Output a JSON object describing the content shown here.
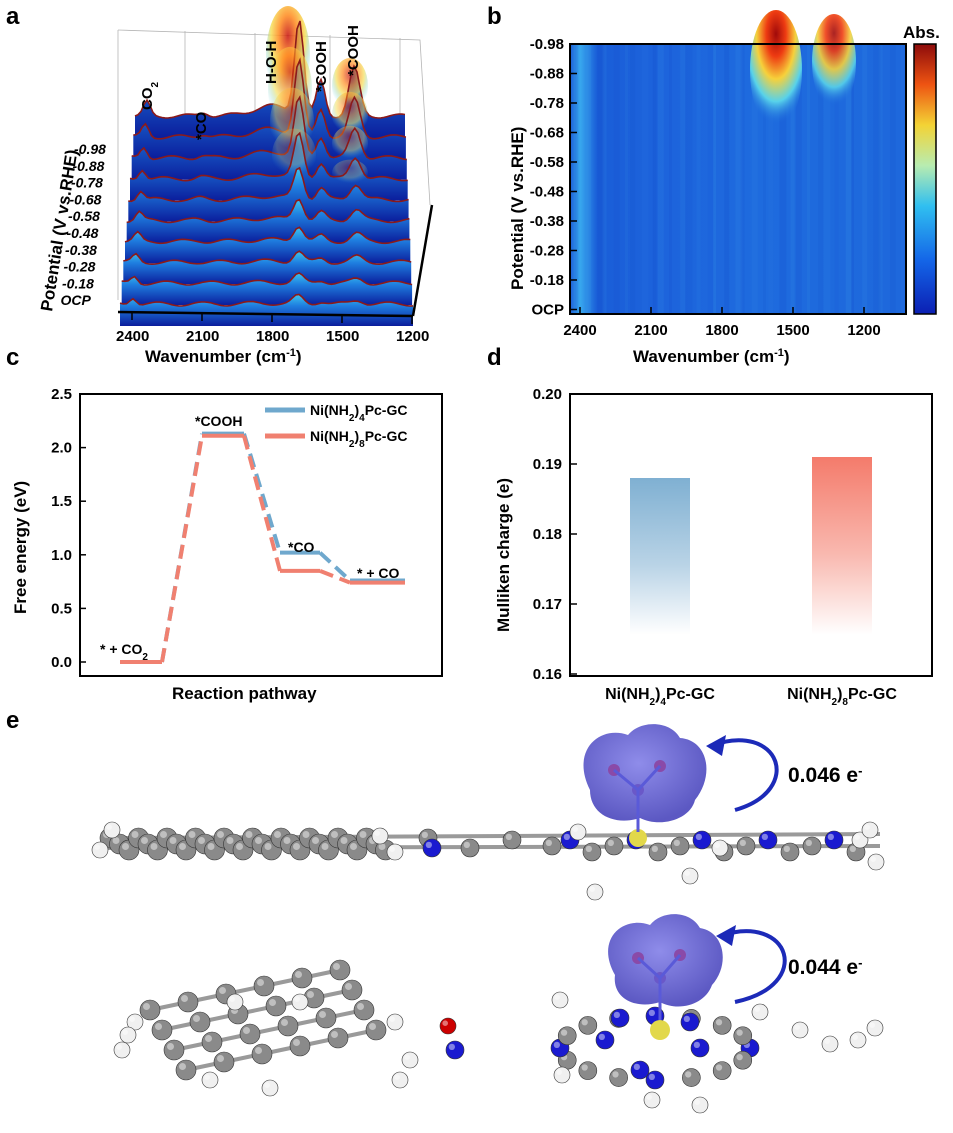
{
  "panels": {
    "a": {
      "letter": "a",
      "xlabel": "Wavenumber (cm",
      "xlabel_sup": "-1",
      "xlabel_end": ")",
      "ylabel": "Potential (V vs.RHE)",
      "x_ticks": [
        "2400",
        "2100",
        "1800",
        "1500",
        "1200"
      ],
      "potential_labels": [
        "-0.98",
        "-0.88",
        "-0.78",
        "-0.68",
        "-0.58",
        "-0.48",
        "-0.38",
        "-0.28",
        "-0.18",
        "OCP"
      ],
      "annotations": {
        "co2": "CO",
        "co2_sub": "2",
        "co": "*CO",
        "hoh": "H-O-H",
        "cooh1": "*COOH",
        "cooh2": "*COOH"
      }
    },
    "b": {
      "letter": "b",
      "xlabel": "Wavenumber (cm",
      "xlabel_sup": "-1",
      "xlabel_end": ")",
      "ylabel": "Potential (V vs.RHE)",
      "x_ticks": [
        "2400",
        "2100",
        "1800",
        "1500",
        "1200"
      ],
      "y_ticks": [
        "-0.98",
        "-0.88",
        "-0.78",
        "-0.68",
        "-0.58",
        "-0.48",
        "-0.38",
        "-0.28",
        "-0.18",
        "OCP"
      ],
      "colorbar_label": "Abs."
    },
    "e": {
      "letter": "e",
      "charge_top": "0.046 e",
      "charge_bottom": "0.044 e",
      "charge_sup": "-"
    }
  },
  "chart_data": [
    {
      "panel": "c",
      "type": "line",
      "xlabel": "Reaction pathway",
      "ylabel": "Free energy (eV)",
      "ylim": [
        0,
        2.5
      ],
      "y_ticks": [
        "0.0",
        "0.5",
        "1.0",
        "1.5",
        "2.0",
        "2.5"
      ],
      "states": [
        "* + CO2",
        "*COOH",
        "*CO",
        "* + CO"
      ],
      "state_labels": {
        "s0": "* + CO",
        "s0_sub": "2",
        "s1": "*COOH",
        "s2": "*CO",
        "s3": "* + CO"
      },
      "legend_position": "top-right",
      "series": [
        {
          "name": "Ni(NH",
          "name_sub": "2",
          "name_end": ")4Pc-GC",
          "legend": [
            "Ni(NH",
            "2",
            ")",
            "4",
            "Pc-GC"
          ],
          "color": "#6fa8cd",
          "values": [
            0.0,
            2.13,
            1.02,
            0.76
          ]
        },
        {
          "name": "Ni(NH2)8Pc-GC",
          "legend": [
            "Ni(NH",
            "2",
            ")",
            "8",
            "Pc-GC"
          ],
          "color": "#f08070",
          "values": [
            0.0,
            2.11,
            0.85,
            0.74
          ]
        }
      ]
    },
    {
      "panel": "d",
      "type": "bar",
      "ylabel": "Mulliken charge (e)",
      "ylim": [
        0.16,
        0.2
      ],
      "y_ticks": [
        "0.16",
        "0.17",
        "0.18",
        "0.19",
        "0.20"
      ],
      "categories": [
        {
          "parts": [
            "Ni(NH",
            "2",
            ")",
            "4",
            "Pc-GC"
          ]
        },
        {
          "parts": [
            "Ni(NH",
            "2",
            ")",
            "8",
            "Pc-GC"
          ]
        }
      ],
      "values": [
        0.188,
        0.191
      ],
      "colors": [
        "#7fb0d2",
        "#f47b6b"
      ]
    }
  ]
}
